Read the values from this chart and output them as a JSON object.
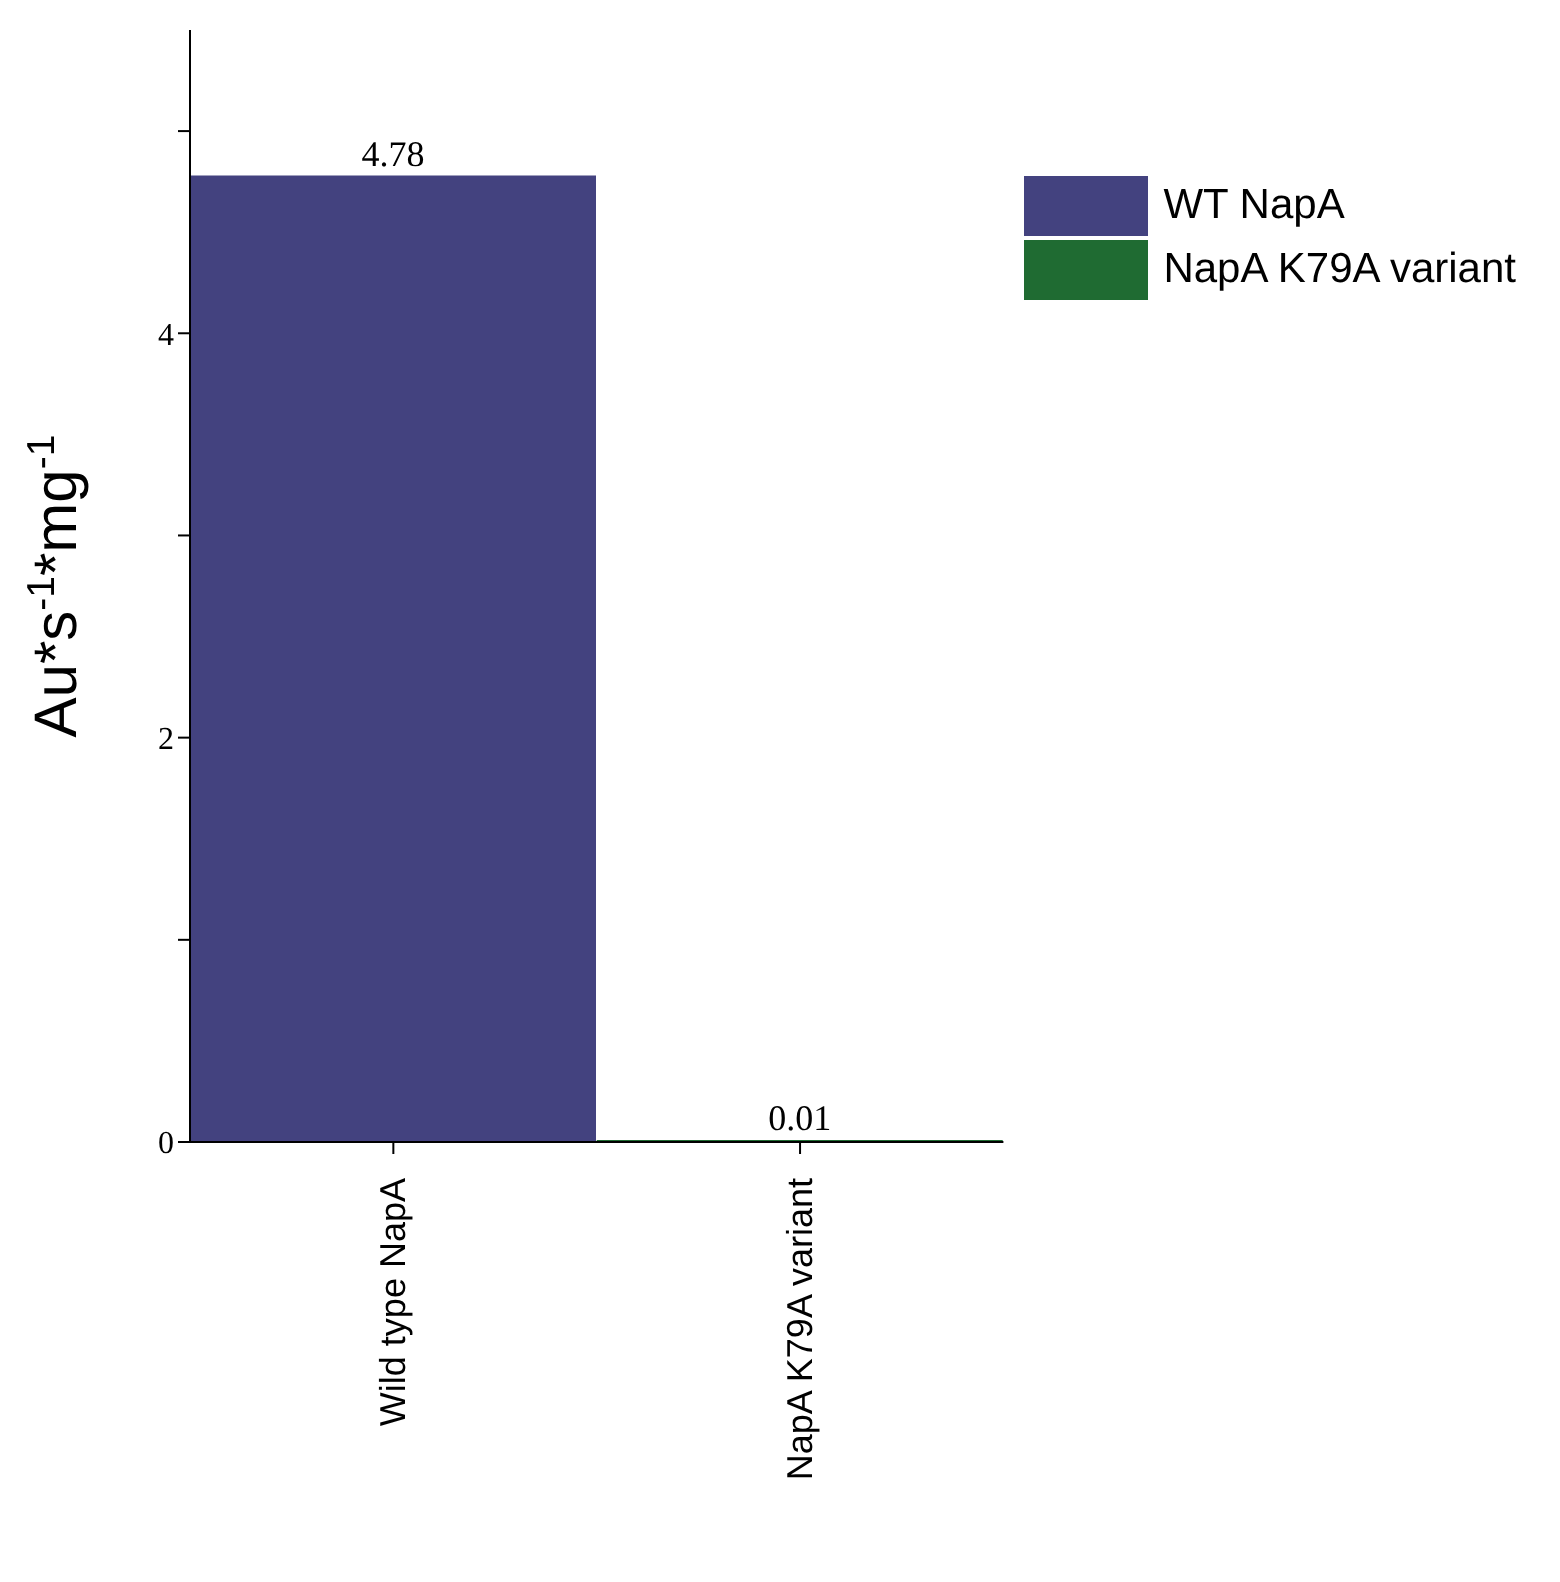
{
  "chart_data": {
    "type": "bar",
    "ylabel": "Au*s$^{-1}$*mg$^{-1}$",
    "categories": [
      "Wild type NapA",
      "NapA K79A variant"
    ],
    "series": [
      {
        "name": "WT NapA",
        "color": "#43427f",
        "values": [
          4.78,
          null
        ]
      },
      {
        "name": "NapA K79A variant",
        "color": "#1f6b32",
        "values": [
          null,
          0.01
        ]
      }
    ],
    "ylim": [
      0,
      5.5
    ],
    "yticks": [
      0,
      {
        "value": 1,
        "label": null
      },
      2,
      {
        "value": 3,
        "label": null
      },
      4,
      {
        "value": 5,
        "label": null
      }
    ],
    "data_labels": true,
    "legend": "top right",
    "grid": false
  }
}
